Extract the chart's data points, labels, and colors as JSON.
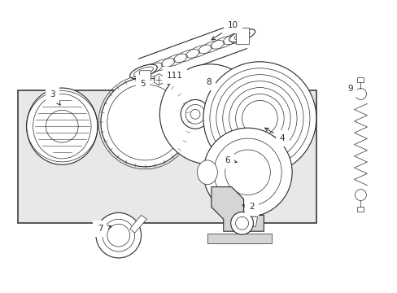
{
  "bg_color": "#ffffff",
  "line_color": "#2a2a2a",
  "box_fill": "#e8e8e8",
  "fig_width": 4.89,
  "fig_height": 3.6,
  "dpi": 100
}
